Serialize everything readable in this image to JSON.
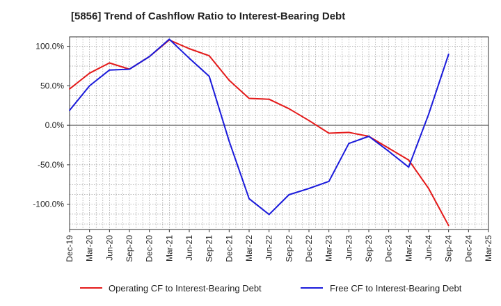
{
  "chart_data": {
    "type": "line",
    "title": "[5856]  Trend of Cashflow Ratio to Interest-Bearing Debt",
    "x_labels": [
      "Dec-19",
      "Mar-20",
      "Jun-20",
      "Sep-20",
      "Dec-20",
      "Mar-21",
      "Jun-21",
      "Sep-21",
      "Dec-21",
      "Mar-22",
      "Jun-22",
      "Sep-22",
      "Dec-22",
      "Mar-23",
      "Jun-23",
      "Sep-23",
      "Dec-23",
      "Mar-24",
      "Jun-24",
      "Sep-24",
      "Dec-24",
      "Mar-25"
    ],
    "y_ticks": [
      100,
      50,
      0,
      -50,
      -100
    ],
    "y_tick_labels": [
      "100.0%",
      "50.0%",
      "0.0%",
      "-50.0%",
      "-100.0%"
    ],
    "ylim": [
      -132,
      112
    ],
    "series": [
      {
        "name": "Operating CF to Interest-Bearing Debt",
        "color": "#e41a1a",
        "values": [
          46,
          66,
          79,
          71,
          87,
          108,
          97,
          88,
          57,
          34,
          33,
          21,
          6,
          -10,
          -9,
          -14,
          -29,
          -44,
          -80,
          -127,
          null,
          null
        ]
      },
      {
        "name": "Free CF to Interest-Bearing Debt",
        "color": "#1a1adb",
        "values": [
          19,
          50,
          70,
          71,
          87,
          109,
          85,
          62,
          -20,
          -93,
          -113,
          -88,
          -80,
          -71,
          -23,
          -14,
          -33,
          -53,
          14,
          90,
          null,
          null
        ]
      }
    ],
    "grid": true,
    "legend_position": "bottom"
  }
}
